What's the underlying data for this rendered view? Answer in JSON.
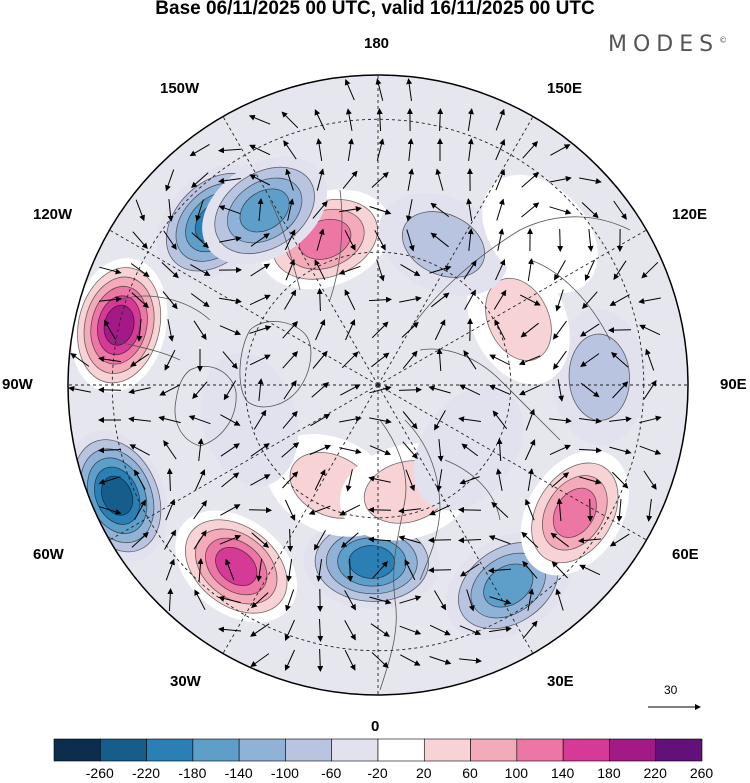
{
  "title": "Base 06/11/2025 00 UTC, valid 16/11/2025 00 UTC",
  "logo": "MODES",
  "logo_mark": "©",
  "longitude_labels": {
    "north": "180",
    "south": "0",
    "east": "90E",
    "west": "90W",
    "w150": "150W",
    "e150": "150E",
    "w120": "120W",
    "e120": "120E",
    "w60": "60W",
    "e60": "60E",
    "w30": "30W",
    "e30": "30E"
  },
  "reference_vector": "30",
  "colorbar": {
    "colors": [
      "#0d2d4f",
      "#175d8c",
      "#2a7fb5",
      "#5d9fc8",
      "#8fb2d6",
      "#b8c4e0",
      "#e2e2ef",
      "#ffffff",
      "#f7d3d6",
      "#f3aab9",
      "#ec77a4",
      "#d53a97",
      "#a31a86",
      "#63107a"
    ],
    "ticks": [
      "-260",
      "-220",
      "-180",
      "-140",
      "-100",
      "-60",
      "-20",
      "20",
      "60",
      "100",
      "140",
      "180",
      "220",
      "260"
    ]
  },
  "anomalies": [
    {
      "name": "anom-pos-north",
      "lon": 200,
      "lat": 55,
      "value": 170
    },
    {
      "name": "anom-neg-dateline-w",
      "lon": 225,
      "lat": 38,
      "value": -200
    },
    {
      "name": "anom-neg-dateline-e",
      "lon": 213,
      "lat": 43,
      "value": -180
    },
    {
      "name": "anom-pos-northwest",
      "lon": 257,
      "lat": 30,
      "value": 240
    },
    {
      "name": "anom-neg-west",
      "lon": 293,
      "lat": 26,
      "value": -240
    },
    {
      "name": "anom-pos-southwest",
      "lon": 322,
      "lat": 38,
      "value": 230
    },
    {
      "name": "anom-neg-south",
      "lon": 358,
      "lat": 50,
      "value": -200
    },
    {
      "name": "anom-pos-south-small",
      "lon": 335,
      "lat": 65,
      "value": 90
    },
    {
      "name": "anom-pos-scandinavia",
      "lon": 15,
      "lat": 65,
      "value": 100
    },
    {
      "name": "anom-neg-south-east",
      "lon": 33,
      "lat": 36,
      "value": -180
    },
    {
      "name": "anom-pos-east",
      "lon": 57,
      "lat": 37,
      "value": 190
    },
    {
      "name": "anom-neg-east",
      "lon": 92,
      "lat": 40,
      "value": -80
    },
    {
      "name": "anom-pos-east-north",
      "lon": 115,
      "lat": 55,
      "value": 80
    },
    {
      "name": "anom-neg-northeast",
      "lon": 155,
      "lat": 55,
      "value": -80
    },
    {
      "name": "anom-pos-northeast",
      "lon": 133,
      "lat": 40,
      "value": 60
    },
    {
      "name": "anom-neg-centre-east",
      "lon": 55,
      "lat": 65,
      "value": -50
    },
    {
      "name": "anom-neg-centre-west",
      "lon": 285,
      "lat": 60,
      "value": -40
    }
  ]
}
